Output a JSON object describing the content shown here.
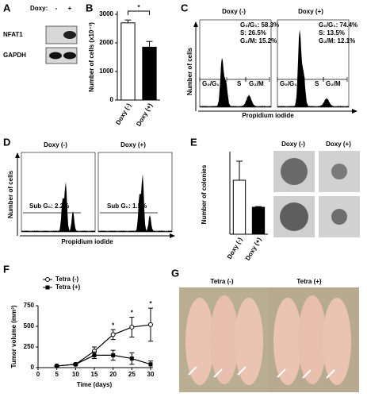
{
  "chart_data": [
    {
      "type": "bar",
      "label": "B",
      "ylabel": "Number of cells (x10⁻³)",
      "categories": [
        "Doxy (-)",
        "Doxy (+)"
      ],
      "values": [
        2700,
        1850
      ],
      "errors": [
        100,
        200
      ],
      "colors": [
        "#ffffff",
        "#000000"
      ],
      "ylim": [
        0,
        3000
      ],
      "yticks": [
        0,
        1000,
        2000,
        3000
      ],
      "annotation": "*"
    },
    {
      "type": "bar",
      "label": "E",
      "ylabel": "Number of colonies",
      "categories": [
        "Doxy (-)",
        "Doxy (+)"
      ],
      "values": [
        1700,
        850
      ],
      "errors": [
        600,
        20
      ],
      "colors": [
        "#ffffff",
        "#000000"
      ],
      "ylim": [
        0,
        2500
      ]
    },
    {
      "type": "line",
      "label": "F",
      "xlabel": "Time (days)",
      "ylabel": "Tumor volume (mm³)",
      "x": [
        5,
        10,
        15,
        20,
        25,
        30
      ],
      "series": [
        {
          "name": "Tetra (-)",
          "color": "#000000",
          "marker": "open-circle",
          "values": [
            20,
            40,
            200,
            400,
            490,
            520
          ],
          "errors": [
            5,
            10,
            50,
            60,
            120,
            200
          ]
        },
        {
          "name": "Tetra (+)",
          "color": "#000000",
          "marker": "filled-square",
          "values": [
            20,
            40,
            150,
            150,
            110,
            40
          ],
          "errors": [
            5,
            10,
            40,
            60,
            70,
            40
          ]
        }
      ],
      "xlim": [
        0,
        30
      ],
      "xticks": [
        0,
        5,
        10,
        15,
        20,
        25,
        30
      ],
      "ylim": [
        0,
        750
      ],
      "yticks": [
        0,
        250,
        500,
        750
      ],
      "annotations": [
        {
          "x": 20,
          "text": "*"
        },
        {
          "x": 25,
          "text": "*"
        },
        {
          "x": 30,
          "text": "*"
        }
      ]
    }
  ],
  "panel_a": {
    "label": "A",
    "doxy": "Doxy:",
    "minus": "-",
    "plus": "+",
    "rows": [
      "NFAT1",
      "GAPDH"
    ]
  },
  "panel_c": {
    "label": "C",
    "titles": [
      "Doxy (-)",
      "Doxy (+)"
    ],
    "stats": [
      [
        "G₀/G₁: 58.3%",
        "S: 26.5%",
        "G₂/M: 15.2%"
      ],
      [
        "G₀/G₁: 74.4%",
        "S: 13.5%",
        "G₂/M: 12.1%"
      ]
    ],
    "gates": [
      "G₀/G₁",
      "S",
      "G₂/M"
    ],
    "ylabel": "Number of cells",
    "xlabel": "Propidium iodide"
  },
  "panel_d": {
    "label": "D",
    "titles": [
      "Doxy (-)",
      "Doxy (+)"
    ],
    "subg": [
      "Sub G₀: 2.2%",
      "Sub G₀: 1.5%"
    ],
    "ylabel": "Number of cells",
    "xlabel": "Propidium iodide"
  },
  "panel_e": {
    "titles": [
      "Doxy (-)",
      "Doxy (+)"
    ]
  },
  "panel_g": {
    "label": "G",
    "titles": [
      "Tetra (-)",
      "Tetra (+)"
    ]
  }
}
